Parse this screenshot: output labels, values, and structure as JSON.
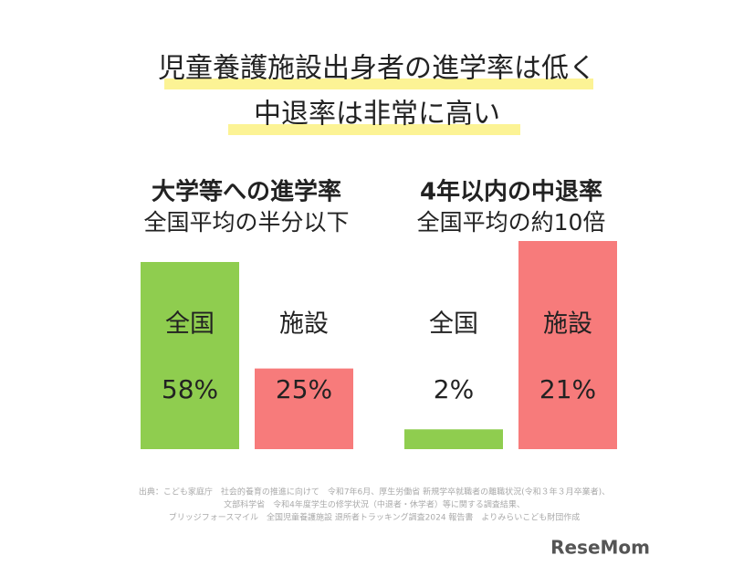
{
  "title": [
    "児童養護施設出身者の進学率は低く",
    "中退率は非常に高い"
  ],
  "chart_data": [
    {
      "type": "bar",
      "title": "大学等への進学率",
      "subtitle": "全国平均の半分以下",
      "categories": [
        "全国",
        "施設"
      ],
      "values": [
        58,
        25
      ],
      "value_labels": [
        "58%",
        "25%"
      ],
      "colors": [
        "#8fcd4f",
        "#f77b7b"
      ],
      "ylim": [
        0,
        58
      ]
    },
    {
      "type": "bar",
      "title": "4年以内の中退率",
      "subtitle": "全国平均の約10倍",
      "categories": [
        "全国",
        "施設"
      ],
      "values": [
        2,
        21
      ],
      "value_labels": [
        "2%",
        "21%"
      ],
      "colors": [
        "#8fcd4f",
        "#f77b7b"
      ],
      "ylim": [
        0,
        21
      ]
    }
  ],
  "source": [
    "出典：こども家庭庁　社会的養育の推進に向けて　令和7年6月、厚生労働省 新規学卒就職者の離職状況(令和３年３月卒業者)、",
    "文部科学省　令和4年度学生の修学状況（中退者・休学者）等に関する調査結果、",
    "ブリッジフォースマイル　全国児童養護施設 退所者トラッキング調査2024 報告書　よりみらいこども財団作成"
  ],
  "logo": "ReseMom"
}
